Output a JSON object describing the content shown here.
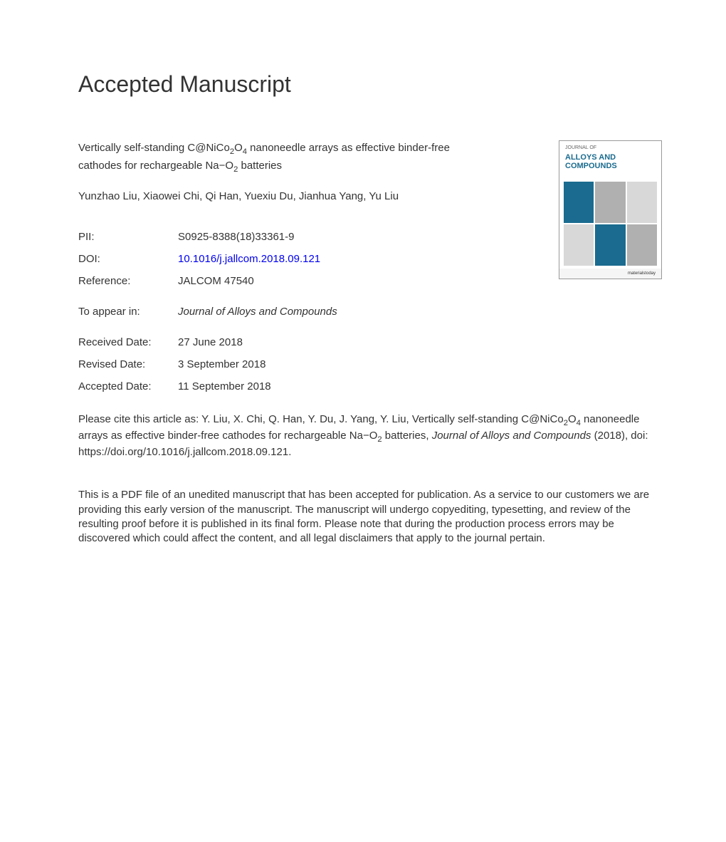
{
  "heading": "Accepted Manuscript",
  "article": {
    "title_html": "Vertically self-standing C@NiCo<sub>2</sub>O<sub>4</sub> nanoneedle arrays as effective binder-free cathodes for rechargeable Na−O<sub>2</sub> batteries",
    "authors": "Yunzhao Liu, Xiaowei Chi, Qi Han, Yuexiu Du, Jianhua Yang, Yu Liu"
  },
  "meta": {
    "pii_label": "PII:",
    "pii_value": "S0925-8388(18)33361-9",
    "doi_label": "DOI:",
    "doi_value": "10.1016/j.jallcom.2018.09.121",
    "reference_label": "Reference:",
    "reference_value": "JALCOM 47540",
    "appear_label": "To appear in:",
    "appear_value": "Journal of Alloys and Compounds",
    "received_label": "Received Date:",
    "received_value": "27 June 2018",
    "revised_label": "Revised Date:",
    "revised_value": "3 September 2018",
    "accepted_label": "Accepted Date:",
    "accepted_value": "11 September 2018"
  },
  "citation_html": "Please cite this article as: Y. Liu, X. Chi, Q. Han, Y. Du, J. Yang, Y. Liu, Vertically self-standing C@NiCo<sub>2</sub>O<sub>4</sub> nanoneedle arrays as effective binder-free cathodes for rechargeable Na−O<sub>2</sub> batteries, <span class=\"italic\">Journal of Alloys and Compounds</span> (2018), doi: https://doi.org/10.1016/j.jallcom.2018.09.121.",
  "disclaimer": "This is a PDF file of an unedited manuscript that has been accepted for publication. As a service to our customers we are providing this early version of the manuscript. The manuscript will undergo copyediting, typesetting, and review of the resulting proof before it is published in its final form. Please note that during the production process errors may be discovered which could affect the content, and all legal disclaimers that apply to the journal pertain.",
  "cover": {
    "top_label": "JOURNAL OF",
    "journal_name_1": "ALLOYS AND",
    "journal_name_2": "COMPOUNDS",
    "footer": "materialstoday",
    "tile_colors": [
      "#1a6b8f",
      "#b0b0b0",
      "#d8d8d8",
      "#d8d8d8",
      "#1a6b8f",
      "#b0b0b0"
    ]
  },
  "colors": {
    "text": "#333333",
    "link": "#0000ee",
    "background": "#ffffff",
    "cover_accent": "#1a6b8f"
  },
  "fonts": {
    "heading_size": 32,
    "body_size": 15
  }
}
